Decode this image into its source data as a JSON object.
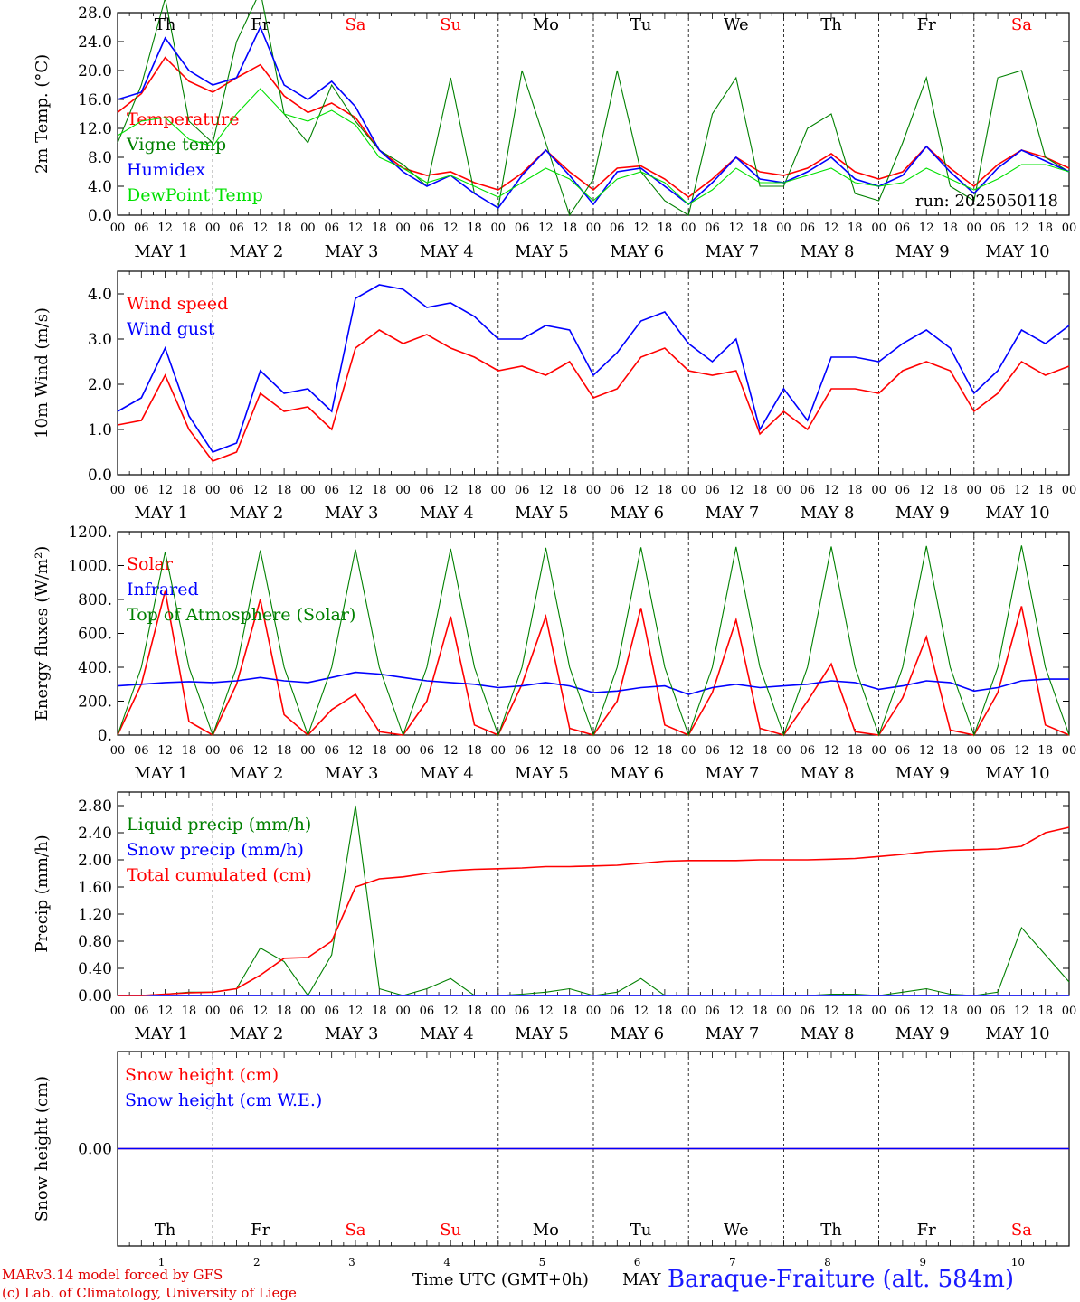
{
  "run_label": "run: 2025050118",
  "footer": {
    "credit_1": "MARv3.14 model forced by GFS",
    "credit_2": "(c) Lab. of Climatology, University of Liege",
    "x_title": "Time UTC (GMT+0h)",
    "x_month": "MAY",
    "station": "Baraque-Fraiture (alt. 584m)"
  },
  "days": [
    {
      "abbr": "Th",
      "num": "1",
      "weekend": false
    },
    {
      "abbr": "Fr",
      "num": "2",
      "weekend": false
    },
    {
      "abbr": "Sa",
      "num": "3",
      "weekend": true
    },
    {
      "abbr": "Su",
      "num": "4",
      "weekend": true
    },
    {
      "abbr": "Mo",
      "num": "5",
      "weekend": false
    },
    {
      "abbr": "Tu",
      "num": "6",
      "weekend": false
    },
    {
      "abbr": "We",
      "num": "7",
      "weekend": false
    },
    {
      "abbr": "Th",
      "num": "8",
      "weekend": false
    },
    {
      "abbr": "Fr",
      "num": "9",
      "weekend": false
    },
    {
      "abbr": "Sa",
      "num": "10",
      "weekend": true
    }
  ],
  "hour_ticks": [
    "00",
    "06",
    "12",
    "18"
  ],
  "date_labels": [
    "MAY  1",
    "MAY  2",
    "MAY  3",
    "MAY  4",
    "MAY  5",
    "MAY  6",
    "MAY  7",
    "MAY  8",
    "MAY  9",
    "MAY 10"
  ],
  "colors": {
    "red": "#ff0000",
    "green": "#008000",
    "blue": "#0000ff",
    "lightgreen": "#00e000",
    "weekend": "#ff0000"
  },
  "chart_data": [
    {
      "type": "line",
      "ylabel": "2m Temp. (°C)",
      "ylim": [
        0,
        28
      ],
      "yticks": [
        "0.0",
        "4.0",
        "8.0",
        "12.0",
        "16.0",
        "20.0",
        "24.0",
        "28.0"
      ],
      "x_hours": [
        0,
        6,
        12,
        18,
        24,
        30,
        36,
        42,
        48,
        54,
        60,
        66,
        72,
        78,
        84,
        90,
        96,
        102,
        108,
        114,
        120,
        126,
        132,
        138,
        144,
        150,
        156,
        162,
        168,
        174,
        180,
        186,
        192,
        198,
        204,
        210,
        216,
        222,
        228,
        234,
        240
      ],
      "series": [
        {
          "name": "Temperature",
          "color": "red",
          "values": [
            14.2,
            16.8,
            21.8,
            18.5,
            17,
            19,
            20.8,
            16.5,
            14.2,
            15.5,
            13.5,
            9,
            6.5,
            5.5,
            6,
            4.5,
            3.5,
            5.8,
            9,
            6,
            3.5,
            6.5,
            6.8,
            5,
            2.5,
            5,
            8,
            6,
            5.5,
            6.5,
            8.5,
            6,
            5,
            6,
            9.5,
            6.5,
            4,
            7,
            9,
            8,
            6.5
          ]
        },
        {
          "name": "Vigne temp",
          "color": "green",
          "values": [
            10,
            18,
            30,
            13,
            10,
            24,
            31,
            14,
            10,
            18,
            13,
            9,
            7,
            4,
            19,
            3,
            1,
            20,
            10,
            0,
            5,
            20,
            6,
            2,
            0,
            14,
            19,
            4,
            4,
            12,
            14,
            3,
            2,
            10,
            19,
            4,
            2,
            19,
            20,
            8,
            6
          ]
        },
        {
          "name": "Humidex",
          "color": "blue",
          "values": [
            16,
            17,
            24.5,
            20,
            18,
            19,
            26,
            18,
            16,
            18.5,
            15,
            9,
            6,
            4,
            5.5,
            3,
            1,
            5.5,
            9,
            5.5,
            1.5,
            6,
            6.5,
            4,
            1.5,
            4.5,
            8,
            5,
            4.5,
            6,
            8,
            5,
            4,
            5.5,
            9.5,
            6,
            3,
            6.5,
            9,
            7.5,
            6
          ]
        },
        {
          "name": "DewPoint Temp",
          "color": "lightgreen",
          "values": [
            11,
            13,
            13.5,
            10.5,
            9.5,
            14,
            17.5,
            14,
            13,
            14.5,
            12.5,
            8,
            6.5,
            4.5,
            5.5,
            4,
            2.5,
            4.5,
            6.5,
            5,
            2,
            5,
            6,
            4.5,
            1.5,
            3.5,
            6.5,
            4.5,
            4.5,
            5.5,
            6.5,
            4.5,
            4,
            4.5,
            6.5,
            5,
            3.5,
            5,
            7,
            7,
            6
          ]
        }
      ]
    },
    {
      "type": "line",
      "ylabel": "10m Wind (m/s)",
      "ylim": [
        0,
        4.5
      ],
      "yticks": [
        "0.0",
        "1.0",
        "2.0",
        "3.0",
        "4.0"
      ],
      "x_hours": [
        0,
        6,
        12,
        18,
        24,
        30,
        36,
        42,
        48,
        54,
        60,
        66,
        72,
        78,
        84,
        90,
        96,
        102,
        108,
        114,
        120,
        126,
        132,
        138,
        144,
        150,
        156,
        162,
        168,
        174,
        180,
        186,
        192,
        198,
        204,
        210,
        216,
        222,
        228,
        234,
        240
      ],
      "series": [
        {
          "name": "Wind speed",
          "color": "red",
          "values": [
            1.1,
            1.2,
            2.2,
            1.0,
            0.3,
            0.5,
            1.8,
            1.4,
            1.5,
            1.0,
            2.8,
            3.2,
            2.9,
            3.1,
            2.8,
            2.6,
            2.3,
            2.4,
            2.2,
            2.5,
            1.7,
            1.9,
            2.6,
            2.8,
            2.3,
            2.2,
            2.3,
            0.9,
            1.4,
            1.0,
            1.9,
            1.9,
            1.8,
            2.3,
            2.5,
            2.3,
            1.4,
            1.8,
            2.5,
            2.2,
            2.4
          ]
        },
        {
          "name": "Wind gust",
          "color": "blue",
          "values": [
            1.4,
            1.7,
            2.8,
            1.3,
            0.5,
            0.7,
            2.3,
            1.8,
            1.9,
            1.4,
            3.9,
            4.2,
            4.1,
            3.7,
            3.8,
            3.5,
            3.0,
            3.0,
            3.3,
            3.2,
            2.2,
            2.7,
            3.4,
            3.6,
            2.9,
            2.5,
            3.0,
            1.0,
            1.9,
            1.2,
            2.6,
            2.6,
            2.5,
            2.9,
            3.2,
            2.8,
            1.8,
            2.3,
            3.2,
            2.9,
            3.3
          ]
        }
      ]
    },
    {
      "type": "line",
      "ylabel": "Energy fluxes (W/m²)",
      "ylim": [
        0,
        1200
      ],
      "yticks": [
        "0.",
        "200.",
        "400.",
        "600.",
        "800.",
        "1000.",
        "1200."
      ],
      "x_hours": [
        0,
        6,
        12,
        18,
        24,
        30,
        36,
        42,
        48,
        54,
        60,
        66,
        72,
        78,
        84,
        90,
        96,
        102,
        108,
        114,
        120,
        126,
        132,
        138,
        144,
        150,
        156,
        162,
        168,
        174,
        180,
        186,
        192,
        198,
        204,
        210,
        216,
        222,
        228,
        234,
        240
      ],
      "series": [
        {
          "name": "Solar",
          "color": "red",
          "values": [
            0,
            300,
            850,
            80,
            0,
            300,
            800,
            120,
            0,
            150,
            240,
            20,
            0,
            200,
            700,
            60,
            0,
            300,
            700,
            40,
            0,
            200,
            750,
            60,
            0,
            250,
            680,
            40,
            0,
            200,
            420,
            20,
            0,
            220,
            580,
            30,
            0,
            250,
            760,
            60,
            0
          ]
        },
        {
          "name": "Infrared",
          "color": "blue",
          "values": [
            290,
            300,
            310,
            315,
            310,
            320,
            340,
            320,
            310,
            340,
            370,
            360,
            340,
            320,
            310,
            300,
            280,
            290,
            310,
            290,
            250,
            260,
            280,
            290,
            240,
            280,
            300,
            280,
            290,
            300,
            320,
            310,
            270,
            290,
            320,
            310,
            260,
            280,
            320,
            330,
            330
          ]
        },
        {
          "name": "Top of Atmosphere (Solar)",
          "color": "green",
          "values": [
            0,
            400,
            1080,
            400,
            0,
            400,
            1090,
            400,
            0,
            400,
            1095,
            400,
            0,
            400,
            1100,
            400,
            0,
            400,
            1105,
            400,
            0,
            400,
            1108,
            400,
            0,
            400,
            1110,
            400,
            0,
            400,
            1112,
            400,
            0,
            400,
            1115,
            400,
            0,
            400,
            1118,
            400,
            0
          ]
        }
      ]
    },
    {
      "type": "line",
      "ylabel": "Precip (mm/h)",
      "ylim": [
        0,
        3.0
      ],
      "yticks": [
        "0.00",
        "0.40",
        "0.80",
        "1.20",
        "1.60",
        "2.00",
        "2.40",
        "2.80"
      ],
      "x_hours": [
        0,
        6,
        12,
        18,
        24,
        30,
        36,
        42,
        48,
        54,
        60,
        66,
        72,
        78,
        84,
        90,
        96,
        102,
        108,
        114,
        120,
        126,
        132,
        138,
        144,
        150,
        156,
        162,
        168,
        174,
        180,
        186,
        192,
        198,
        204,
        210,
        216,
        222,
        228,
        234,
        240
      ],
      "series": [
        {
          "name": "Liquid precip (mm/h)",
          "color": "green",
          "values": [
            0,
            0,
            0.02,
            0.05,
            0.05,
            0.1,
            0.7,
            0.5,
            0,
            0.6,
            2.8,
            0.1,
            0,
            0.1,
            0.25,
            0,
            0,
            0.02,
            0.05,
            0.1,
            0,
            0.05,
            0.25,
            0,
            0,
            0,
            0,
            0,
            0,
            0,
            0.02,
            0.02,
            0,
            0.05,
            0.1,
            0.02,
            0,
            0.05,
            1.0,
            0.6,
            0.2
          ]
        },
        {
          "name": "Snow precip (mm/h)",
          "color": "blue",
          "values": [
            0,
            0,
            0,
            0,
            0,
            0,
            0,
            0,
            0,
            0,
            0,
            0,
            0,
            0,
            0,
            0,
            0,
            0,
            0,
            0,
            0,
            0,
            0,
            0,
            0,
            0,
            0,
            0,
            0,
            0,
            0,
            0,
            0,
            0,
            0,
            0,
            0,
            0,
            0,
            0,
            0
          ]
        },
        {
          "name": "Total cumulated (cm)",
          "color": "red",
          "values": [
            0,
            0,
            0.02,
            0.04,
            0.05,
            0.1,
            0.3,
            0.55,
            0.56,
            0.8,
            1.6,
            1.72,
            1.75,
            1.8,
            1.84,
            1.86,
            1.87,
            1.88,
            1.9,
            1.9,
            1.91,
            1.92,
            1.95,
            1.98,
            1.99,
            1.99,
            1.99,
            2.0,
            2.0,
            2.0,
            2.01,
            2.02,
            2.05,
            2.08,
            2.12,
            2.14,
            2.15,
            2.16,
            2.2,
            2.4,
            2.48
          ]
        }
      ]
    },
    {
      "type": "line",
      "ylabel": "Snow height (cm)",
      "ylim": [
        -1,
        1
      ],
      "yticks": [
        "0.00"
      ],
      "x_hours": [
        0,
        240
      ],
      "series": [
        {
          "name": "Snow height (cm)",
          "color": "red",
          "values": [
            0,
            0
          ]
        },
        {
          "name": "Snow height (cm W.E.)",
          "color": "blue",
          "values": [
            0,
            0
          ]
        }
      ]
    }
  ]
}
